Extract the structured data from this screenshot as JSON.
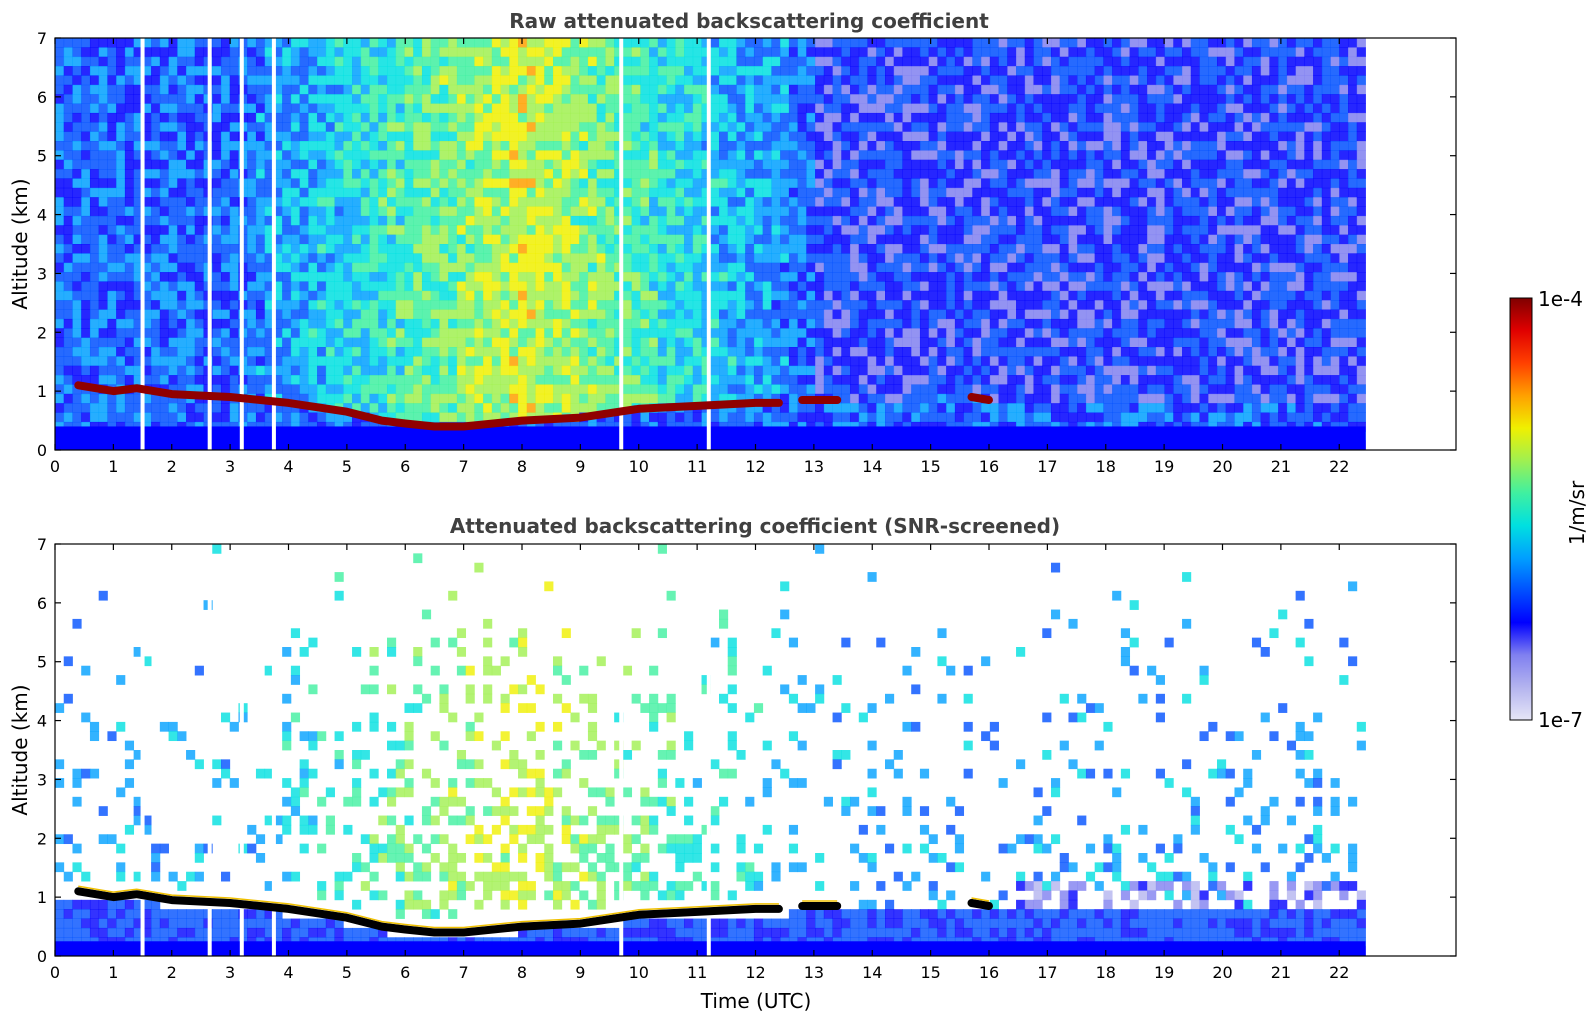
{
  "chart_data": [
    {
      "type": "heatmap",
      "title": "Raw attenuated backscattering coefficient",
      "xlabel": "",
      "ylabel": "Altitude (km)",
      "xlim": [
        0,
        24
      ],
      "ylim": [
        0,
        7
      ],
      "x_ticks": [
        "0",
        "1",
        "2",
        "3",
        "4",
        "5",
        "6",
        "7",
        "8",
        "9",
        "10",
        "11",
        "12",
        "13",
        "14",
        "15",
        "16",
        "17",
        "18",
        "19",
        "20",
        "21",
        "22"
      ],
      "y_ticks": [
        "0",
        "1",
        "2",
        "3",
        "4",
        "5",
        "6",
        "7"
      ],
      "data_extent_x": [
        0,
        22.45
      ],
      "cloud_layer": {
        "time": [
          0.4,
          1.0,
          1.4,
          2.0,
          3.0,
          4.0,
          5.0,
          5.6,
          6.0,
          6.5,
          7.0,
          8.0,
          9.0,
          10.0,
          11.0,
          12.0,
          12.4,
          12.8,
          13.4,
          15.7,
          16.0
        ],
        "altitude": [
          1.1,
          1.0,
          1.05,
          0.95,
          0.9,
          0.8,
          0.65,
          0.5,
          0.45,
          0.4,
          0.4,
          0.5,
          0.55,
          0.7,
          0.75,
          0.8,
          0.8,
          0.85,
          0.85,
          0.9,
          0.85
        ]
      },
      "ground_echo_top_km": 0.4,
      "aerosol_max_time_utc": 8.0,
      "signal_gaps_utc": [
        1.5,
        2.65,
        3.2,
        3.75,
        9.7,
        11.2
      ]
    },
    {
      "type": "heatmap",
      "title": "Attenuated backscattering coefficient (SNR-screened)",
      "xlabel": "Time (UTC)",
      "ylabel": "Altitude (km)",
      "xlim": [
        0,
        24
      ],
      "ylim": [
        0,
        7
      ],
      "x_ticks": [
        "0",
        "1",
        "2",
        "3",
        "4",
        "5",
        "6",
        "7",
        "8",
        "9",
        "10",
        "11",
        "12",
        "13",
        "14",
        "15",
        "16",
        "17",
        "18",
        "19",
        "20",
        "21",
        "22"
      ],
      "y_ticks": [
        "0",
        "1",
        "2",
        "3",
        "4",
        "5",
        "6",
        "7"
      ],
      "data_extent_x": [
        0,
        22.45
      ],
      "cloud_layer": {
        "time": [
          0.4,
          1.0,
          1.4,
          2.0,
          3.0,
          4.0,
          5.0,
          5.6,
          6.0,
          6.5,
          7.0,
          8.0,
          9.0,
          10.0,
          11.0,
          12.0,
          12.4,
          12.8,
          13.4,
          15.7,
          16.0
        ],
        "altitude": [
          1.1,
          1.0,
          1.05,
          0.95,
          0.9,
          0.8,
          0.65,
          0.5,
          0.45,
          0.4,
          0.4,
          0.5,
          0.55,
          0.7,
          0.75,
          0.8,
          0.8,
          0.85,
          0.85,
          0.9,
          0.85
        ]
      },
      "ground_echo_top_km": 0.25,
      "signal_gaps_utc": [
        1.5,
        2.65,
        3.2,
        3.75,
        9.7,
        11.2
      ]
    }
  ],
  "colorbar": {
    "label": "1/m/sr",
    "max_label": "1e-4",
    "min_label": "1e-7",
    "scale": "log",
    "colors": [
      "#e6e6f7",
      "#b4b4ef",
      "#8080f0",
      "#0000ff",
      "#0050ff",
      "#00a0ff",
      "#00e0e0",
      "#40f0a0",
      "#a0f050",
      "#f0f000",
      "#ffa000",
      "#ff4000",
      "#e00000",
      "#800000"
    ]
  }
}
